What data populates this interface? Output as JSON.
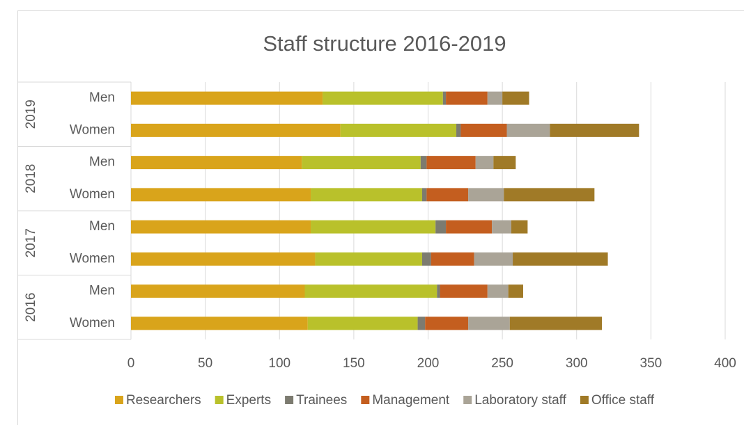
{
  "chart_data": {
    "type": "stacked-barh",
    "title": "Staff structure 2016-2019",
    "groups": [
      "2019",
      "2018",
      "2017",
      "2016"
    ],
    "categories": [
      "Men",
      "Women",
      "Men",
      "Women",
      "Men",
      "Women",
      "Men",
      "Women"
    ],
    "series": [
      {
        "name": "Researchers",
        "color": "#d9a41b",
        "values": [
          129,
          141,
          115,
          121,
          121,
          124,
          117,
          119
        ]
      },
      {
        "name": "Experts",
        "color": "#b9c12b",
        "values": [
          81,
          78,
          80,
          75,
          84,
          72,
          89,
          74
        ]
      },
      {
        "name": "Trainees",
        "color": "#7c7b70",
        "values": [
          2,
          3,
          4,
          3,
          7,
          6,
          2,
          5
        ]
      },
      {
        "name": "Management",
        "color": "#c45e1f",
        "values": [
          28,
          31,
          33,
          28,
          31,
          29,
          32,
          29
        ]
      },
      {
        "name": "Laboratory staff",
        "color": "#aaa497",
        "values": [
          10,
          29,
          12,
          24,
          13,
          26,
          14,
          28
        ]
      },
      {
        "name": "Office staff",
        "color": "#a07a27",
        "values": [
          18,
          60,
          15,
          61,
          11,
          64,
          10,
          62
        ]
      }
    ],
    "xlim": [
      0,
      400
    ],
    "xticks": [
      0,
      50,
      100,
      150,
      200,
      250,
      300,
      350,
      400
    ],
    "grid": true
  }
}
